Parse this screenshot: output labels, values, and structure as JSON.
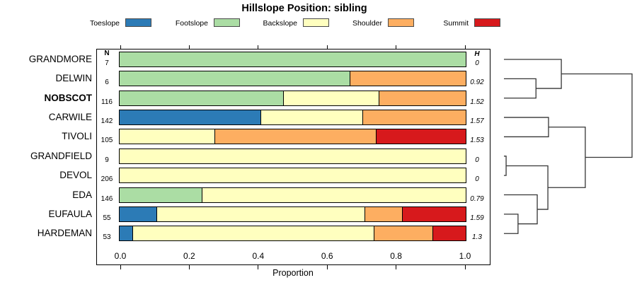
{
  "columns": {
    "n_header": "N",
    "h_header": "H"
  },
  "chart_data": {
    "type": "bar",
    "variant": "horizontal_stacked_proportions_with_cluster_dendrogram",
    "title": "Hillslope Position: sibling",
    "xlabel": "Proportion",
    "xlim": [
      0,
      1
    ],
    "xticks": [
      "0.0",
      "0.2",
      "0.4",
      "0.6",
      "0.8",
      "1.0"
    ],
    "grid": false,
    "legend_position": "top",
    "legend": [
      {
        "label": "Toeslope",
        "color": "#2c7bb6"
      },
      {
        "label": "Footslope",
        "color": "#abdda4"
      },
      {
        "label": "Backslope",
        "color": "#ffffbf"
      },
      {
        "label": "Shoulder",
        "color": "#fdae61"
      },
      {
        "label": "Summit",
        "color": "#d7191c"
      }
    ],
    "rows": [
      {
        "name": "GRANDMORE",
        "N": 7,
        "H": "0",
        "bold": false,
        "segments": [
          {
            "cat": "Footslope",
            "v": 1.0
          }
        ]
      },
      {
        "name": "DELWIN",
        "N": 6,
        "H": "0.92",
        "bold": false,
        "segments": [
          {
            "cat": "Footslope",
            "v": 0.667
          },
          {
            "cat": "Shoulder",
            "v": 0.333
          }
        ]
      },
      {
        "name": "NOBSCOT",
        "N": 116,
        "H": "1.52",
        "bold": true,
        "segments": [
          {
            "cat": "Footslope",
            "v": 0.474
          },
          {
            "cat": "Backslope",
            "v": 0.276
          },
          {
            "cat": "Shoulder",
            "v": 0.25
          }
        ]
      },
      {
        "name": "CARWILE",
        "N": 142,
        "H": "1.57",
        "bold": false,
        "segments": [
          {
            "cat": "Toeslope",
            "v": 0.408
          },
          {
            "cat": "Backslope",
            "v": 0.296
          },
          {
            "cat": "Shoulder",
            "v": 0.296
          }
        ]
      },
      {
        "name": "TIVOLI",
        "N": 105,
        "H": "1.53",
        "bold": false,
        "segments": [
          {
            "cat": "Backslope",
            "v": 0.276
          },
          {
            "cat": "Shoulder",
            "v": 0.467
          },
          {
            "cat": "Summit",
            "v": 0.257
          }
        ]
      },
      {
        "name": "GRANDFIELD",
        "N": 9,
        "H": "0",
        "bold": false,
        "segments": [
          {
            "cat": "Backslope",
            "v": 1.0
          }
        ]
      },
      {
        "name": "DEVOL",
        "N": 206,
        "H": "0",
        "bold": false,
        "segments": [
          {
            "cat": "Backslope",
            "v": 1.0
          }
        ]
      },
      {
        "name": "EDA",
        "N": 146,
        "H": "0.79",
        "bold": false,
        "segments": [
          {
            "cat": "Footslope",
            "v": 0.24
          },
          {
            "cat": "Backslope",
            "v": 0.76
          }
        ]
      },
      {
        "name": "EUFAULA",
        "N": 55,
        "H": "1.59",
        "bold": false,
        "segments": [
          {
            "cat": "Toeslope",
            "v": 0.109
          },
          {
            "cat": "Backslope",
            "v": 0.6
          },
          {
            "cat": "Shoulder",
            "v": 0.109
          },
          {
            "cat": "Summit",
            "v": 0.182
          }
        ]
      },
      {
        "name": "HARDEMAN",
        "N": 53,
        "H": "1.3",
        "bold": false,
        "segments": [
          {
            "cat": "Toeslope",
            "v": 0.038
          },
          {
            "cat": "Backslope",
            "v": 0.698
          },
          {
            "cat": "Shoulder",
            "v": 0.17
          },
          {
            "cat": "Summit",
            "v": 0.094
          }
        ]
      }
    ],
    "dendrogram": {
      "description": "heights normalized 0 (leaf) to 1 (root); mN refers to Nth merge",
      "merges": [
        {
          "a": "DELWIN",
          "b": "NOBSCOT",
          "height": 0.25
        },
        {
          "a": "GRANDMORE",
          "b": "m0",
          "height": 0.448
        },
        {
          "a": "CARWILE",
          "b": "TIVOLI",
          "height": 0.348
        },
        {
          "a": "GRANDFIELD",
          "b": "DEVOL",
          "height": 0.017
        },
        {
          "a": "EUFAULA",
          "b": "HARDEMAN",
          "height": 0.11
        },
        {
          "a": "EDA",
          "b": "m4",
          "height": 0.26
        },
        {
          "a": "m3",
          "b": "m5",
          "height": 0.343
        },
        {
          "a": "m2",
          "b": "m6",
          "height": 0.635
        },
        {
          "a": "m1",
          "b": "m7",
          "height": 1.0
        }
      ]
    }
  }
}
